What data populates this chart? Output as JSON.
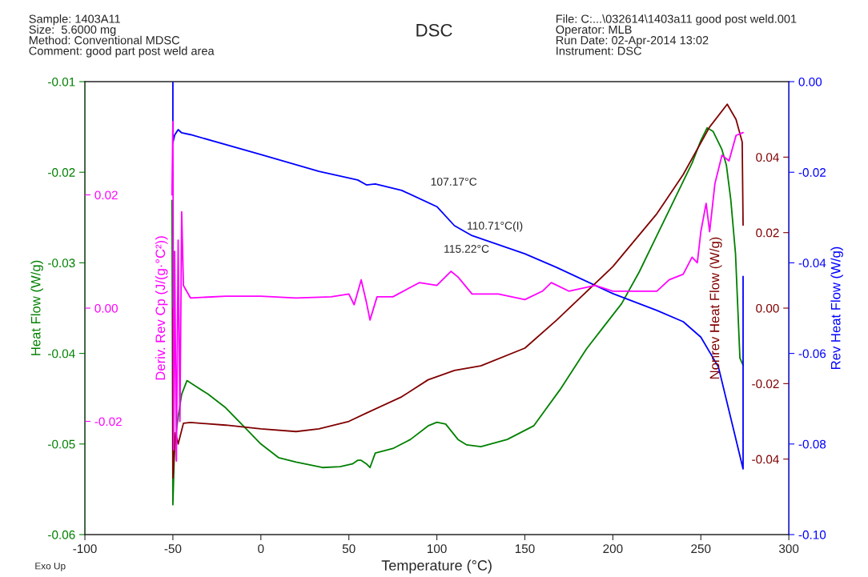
{
  "chart_data": [
    {
      "type": "line",
      "title": "DSC",
      "xlabel": "Temperature (°C)",
      "ylabel": "Heat Flow (W/g)",
      "y2label": "Rev Heat Flow (W/g)",
      "y3label": "Nonrev Heat Flow (W/g)",
      "xlim": [
        -100,
        300
      ],
      "xticks": [
        -100,
        -50,
        0,
        50,
        100,
        150,
        200,
        250,
        300
      ],
      "ylim": [
        -0.06,
        -0.01
      ],
      "yticks": [
        -0.06,
        -0.05,
        -0.04,
        -0.03,
        -0.02,
        -0.01
      ],
      "y2lim": [
        -0.1,
        0.0
      ],
      "y2ticks": [
        {
          "value": -0.1,
          "label": "-0.10"
        },
        -0.08,
        -0.06,
        -0.04,
        -0.02,
        {
          "value": 0.0,
          "label": "0.00"
        }
      ],
      "y3lim": [
        -0.06,
        0.06
      ],
      "y3ticks": [
        -0.04,
        -0.02,
        {
          "value": 0.0,
          "label": "0.00"
        },
        0.02,
        0.04
      ],
      "grid": false,
      "legend": false,
      "marker": "none",
      "line_style": "solid",
      "series": [
        {
          "color": "#008000",
          "axis": "y",
          "x": [
            -50.5,
            -50,
            -49,
            -47,
            -45,
            -42,
            -38,
            -30,
            -20,
            -10,
            0,
            10,
            20,
            35,
            45,
            52,
            55,
            57,
            60,
            62,
            65,
            75,
            85,
            95,
            100,
            105,
            112,
            117,
            125,
            140,
            155,
            170,
            185,
            195,
            205,
            215,
            225,
            235,
            245,
            250,
            253.6,
            257,
            262,
            264.5,
            267,
            269.7,
            272.2,
            274
          ],
          "values": [
            -0.0231,
            -0.0567,
            -0.05,
            -0.047,
            -0.0445,
            -0.043,
            -0.0435,
            -0.0445,
            -0.046,
            -0.048,
            -0.05,
            -0.0515,
            -0.052,
            -0.0526,
            -0.0525,
            -0.0522,
            -0.0518,
            -0.0518,
            -0.0522,
            -0.0526,
            -0.051,
            -0.0505,
            -0.0495,
            -0.048,
            -0.0476,
            -0.0478,
            -0.0495,
            -0.0501,
            -0.0503,
            -0.0495,
            -0.048,
            -0.044,
            -0.0395,
            -0.037,
            -0.0345,
            -0.031,
            -0.027,
            -0.023,
            -0.019,
            -0.0165,
            -0.0151,
            -0.0155,
            -0.0175,
            -0.0192,
            -0.023,
            -0.029,
            -0.0405,
            -0.0413
          ]
        },
        {
          "color": "#0000ff",
          "axis": "y2",
          "x": [
            -50,
            -50,
            -49,
            -47,
            -45,
            -40,
            0,
            33,
            55,
            60,
            65,
            80,
            100,
            110,
            120,
            150,
            168,
            200,
            225,
            240,
            250,
            260,
            274,
            274
          ],
          "values": [
            0.0,
            -0.0135,
            -0.0118,
            -0.0106,
            -0.0113,
            -0.0117,
            -0.0161,
            -0.0198,
            -0.0217,
            -0.0228,
            -0.0226,
            -0.024,
            -0.0276,
            -0.0318,
            -0.034,
            -0.038,
            -0.041,
            -0.0468,
            -0.0505,
            -0.053,
            -0.0564,
            -0.063,
            -0.0855,
            -0.043
          ]
        },
        {
          "color": "#800000",
          "axis": "y3",
          "x": [
            -50,
            -50,
            -48.5,
            -47,
            -44,
            -40,
            -20,
            0,
            20,
            33,
            50,
            60,
            80,
            95,
            110,
            125,
            150,
            168,
            200,
            225,
            240,
            255,
            265,
            270,
            273.5,
            274
          ],
          "values": [
            0.0,
            -0.045,
            -0.033,
            -0.036,
            -0.0305,
            -0.0303,
            -0.031,
            -0.032,
            -0.0327,
            -0.032,
            -0.03,
            -0.0278,
            -0.0235,
            -0.019,
            -0.0165,
            -0.0153,
            -0.0106,
            -0.0032,
            0.011,
            0.025,
            0.0354,
            0.048,
            0.054,
            0.05,
            0.044,
            0.022
          ]
        }
      ],
      "annotations": [
        "Sample: 1403A11",
        "Size:  5.6000 mg",
        "Method: Conventional MDSC",
        "Comment: good part post weld area",
        "File: C:...\\032614\\1403a11 good post weld.001",
        "Operator: MLB",
        "Run Date: 02-Apr-2014 13:02",
        "Instrument: DSC",
        "Exo Up",
        "107.17°C",
        {
          "text": "110.71°C(I)",
          "x": 110.71,
          "y": -0.026
        },
        {
          "text": "115.22°C",
          "x": 115.22,
          "y": -0.0266
        }
      ]
    },
    {
      "type": "line",
      "ylabel": "Deriv. Rev Cp (J/(g·°C²))",
      "xlim": [
        -100,
        300
      ],
      "ylim": [
        -0.04,
        0.04
      ],
      "yticks": [
        -0.02,
        {
          "value": 0.0,
          "label": "0.00"
        },
        0.02
      ],
      "tick_labels": "y",
      "line_style": "solid",
      "marker": "none",
      "series": [
        {
          "color": "#ff00ff",
          "x": [
            -50.5,
            -50,
            -49.5,
            -49,
            -48,
            -47,
            -46,
            -45,
            -44,
            -40,
            -20,
            0,
            20,
            40,
            50,
            53,
            57,
            60,
            62,
            66,
            75,
            90,
            100,
            108,
            112,
            120,
            135,
            150,
            160,
            165,
            175,
            190,
            200,
            215,
            225,
            232,
            240,
            245,
            248,
            250,
            253,
            255,
            258,
            262,
            266,
            270,
            274
          ],
          "values": [
            0.02,
            0.033,
            -0.025,
            0.01,
            -0.027,
            0.012,
            -0.02,
            0.017,
            0.004,
            0.0018,
            0.0021,
            0.0021,
            0.0018,
            0.002,
            0.0025,
            0.0006,
            0.005,
            0.001,
            -0.0021,
            0.002,
            0.002,
            0.0045,
            0.004,
            0.0065,
            0.0055,
            0.0025,
            0.0025,
            0.0015,
            0.003,
            0.0045,
            0.003,
            0.004,
            0.003,
            0.003,
            0.003,
            0.005,
            0.006,
            0.009,
            0.008,
            0.0135,
            0.0185,
            0.0135,
            0.022,
            0.027,
            0.026,
            0.0305,
            0.031
          ]
        }
      ]
    }
  ]
}
